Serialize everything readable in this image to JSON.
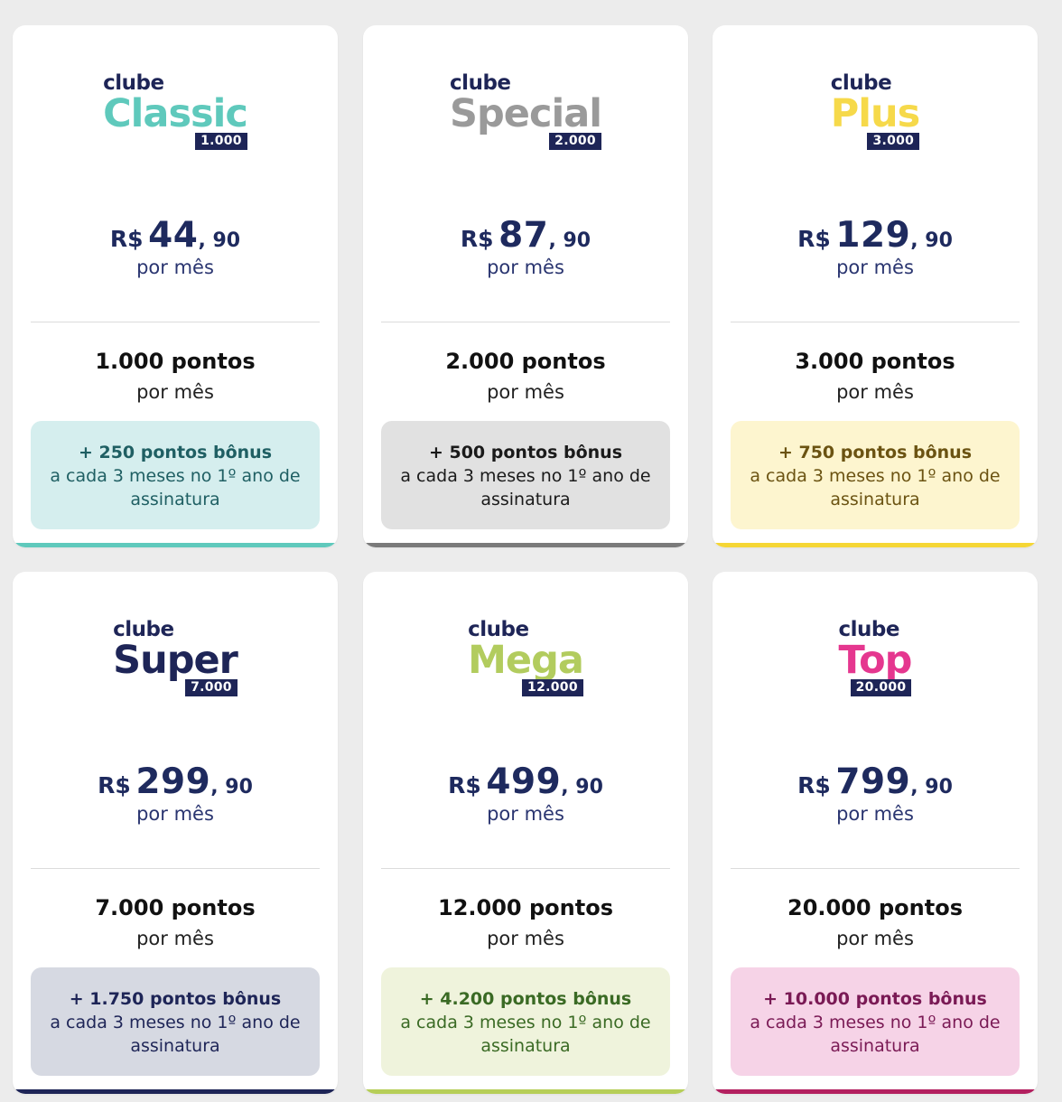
{
  "plans": [
    {
      "logo_prefix": "clube",
      "name": "Classic",
      "tag": "1.000",
      "name_color": "#5fc9bc",
      "currency": "R$",
      "price_int": "44",
      "price_dec": ", 90",
      "price_period": "por mês",
      "points": "1.000 pontos",
      "points_period": "por mês",
      "bonus_title": "+ 250 pontos bônus",
      "bonus_text": "a cada 3 meses no 1º ano de assinatura",
      "bonus_bg": "#d5eeee",
      "bonus_color": "#1f5f63",
      "accent": "#5fc9bc"
    },
    {
      "logo_prefix": "clube",
      "name": "Special",
      "tag": "2.000",
      "name_color": "#9a9a9a",
      "currency": "R$",
      "price_int": "87",
      "price_dec": ", 90",
      "price_period": "por mês",
      "points": "2.000 pontos",
      "points_period": "por mês",
      "bonus_title": "+ 500 pontos bônus",
      "bonus_text": "a cada 3 meses no 1º ano de assinatura",
      "bonus_bg": "#e1e1e1",
      "bonus_color": "#1a1a1a",
      "accent": "#7a7a7a"
    },
    {
      "logo_prefix": "clube",
      "name": "Plus",
      "tag": "3.000",
      "name_color": "#f6d94a",
      "currency": "R$",
      "price_int": "129",
      "price_dec": ", 90",
      "price_period": "por mês",
      "points": "3.000 pontos",
      "points_period": "por mês",
      "bonus_title": "+ 750 pontos bônus",
      "bonus_text": "a cada 3 meses no 1º ano de assinatura",
      "bonus_bg": "#fdf5cf",
      "bonus_color": "#6b5312",
      "accent": "#f5d635"
    },
    {
      "logo_prefix": "clube",
      "name": "Super",
      "tag": "7.000",
      "name_color": "#1e2557",
      "currency": "R$",
      "price_int": "299",
      "price_dec": ", 90",
      "price_period": "por mês",
      "points": "7.000 pontos",
      "points_period": "por mês",
      "bonus_title": "+ 1.750 pontos bônus",
      "bonus_text": "a cada 3 meses no 1º ano de assinatura",
      "bonus_bg": "#d6d9e2",
      "bonus_color": "#1e2557",
      "accent": "#1e2557"
    },
    {
      "logo_prefix": "clube",
      "name": "Mega",
      "tag": "12.000",
      "name_color": "#b2cc5e",
      "currency": "R$",
      "price_int": "499",
      "price_dec": ", 90",
      "price_period": "por mês",
      "points": "12.000 pontos",
      "points_period": "por mês",
      "bonus_title": "+ 4.200 pontos bônus",
      "bonus_text": "a cada 3 meses no 1º ano de assinatura",
      "bonus_bg": "#eff3dc",
      "bonus_color": "#3a6a24",
      "accent": "#b6ce58"
    },
    {
      "logo_prefix": "clube",
      "name": "Top",
      "tag": "20.000",
      "name_color": "#e5378f",
      "currency": "R$",
      "price_int": "799",
      "price_dec": ", 90",
      "price_period": "por mês",
      "points": "20.000 pontos",
      "points_period": "por mês",
      "bonus_title": "+ 10.000 pontos bônus",
      "bonus_text": "a cada 3 meses no 1º ano de assinatura",
      "bonus_bg": "#f6d3e7",
      "bonus_color": "#7a1a55",
      "accent": "#b3205f"
    }
  ]
}
